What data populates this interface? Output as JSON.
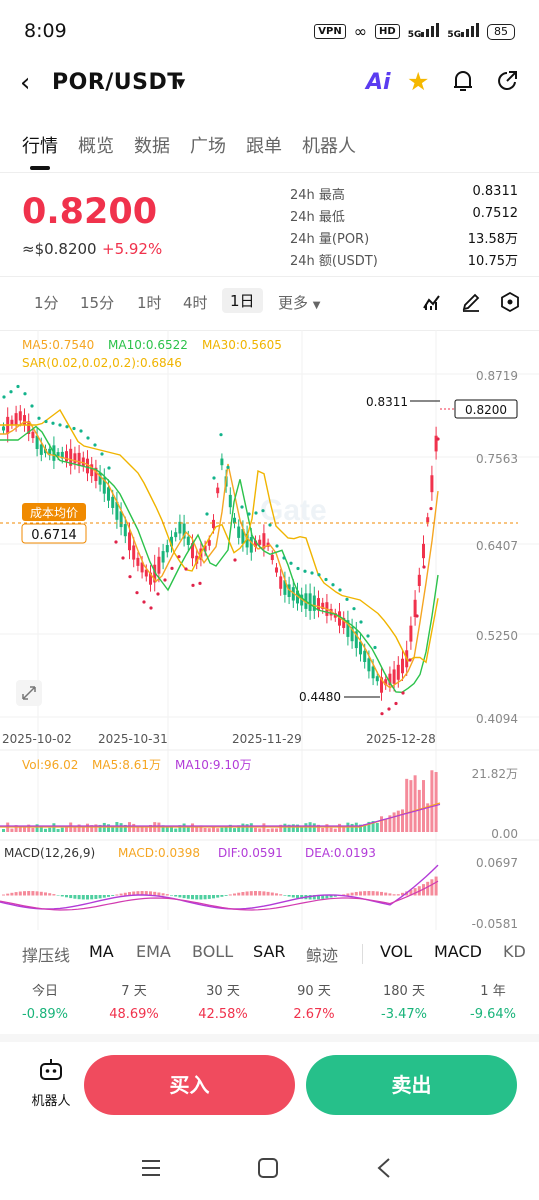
{
  "status": {
    "time": "8:09",
    "vpn": "VPN",
    "hd": "HD",
    "net1": "5G",
    "net2": "5G",
    "battery": "85"
  },
  "header": {
    "pair": "POR/USDT",
    "back_icon": "chevron-left-icon",
    "ai_label": "Ai",
    "icons": [
      "ai-icon",
      "star-icon",
      "bell-icon",
      "share-icon"
    ]
  },
  "tabs": [
    "行情",
    "概览",
    "数据",
    "广场",
    "跟单",
    "机器人"
  ],
  "ticker": {
    "price": "0.8200",
    "usd": "≈$0.8200",
    "change": "+5.92%",
    "stats": [
      {
        "label": "24h  最高",
        "value": "0.8311"
      },
      {
        "label": "24h  最低",
        "value": "0.7512"
      },
      {
        "label": "24h  量(POR)",
        "value": "13.58万"
      },
      {
        "label": "24h  额(USDT)",
        "value": "10.75万"
      }
    ]
  },
  "timeframes": [
    "1分",
    "15分",
    "1时",
    "4时",
    "1日",
    "更多"
  ],
  "chart_data": {
    "type": "candlestick",
    "main_indicators": {
      "ma5": "MA5:0.7540",
      "ma10": "MA10:0.6522",
      "ma30": "MA30:0.5605",
      "sar": "SAR(0.02,0.02,0.2):0.6846"
    },
    "y_ticks": [
      "0.8719",
      "0.7563",
      "0.6407",
      "0.5250",
      "0.4094"
    ],
    "x_ticks": [
      "2025-10-02",
      "2025-10-31",
      "2025-11-29",
      "2025-12-28"
    ],
    "high_label": "0.8311",
    "low_label": "0.4480",
    "last_price": "0.8200",
    "avg_cost_label": "成本均价",
    "avg_cost": "0.6714",
    "watermark": "Gate",
    "volume": {
      "vol": "Vol:96.02",
      "ma5": "MA5:8.61万",
      "ma10": "MA10:9.10万",
      "ticks": [
        "21.82万",
        "0.00"
      ]
    },
    "macd": {
      "params": "MACD(12,26,9)",
      "macd": "MACD:0.0398",
      "dif": "DIF:0.0591",
      "dea": "DEA:0.0193",
      "ticks": [
        "0.0697",
        "-0.0581"
      ]
    }
  },
  "indicator_tabs": [
    "撑压线",
    "MA",
    "EMA",
    "BOLL",
    "SAR",
    "鲸迹",
    "VOL",
    "MACD",
    "KD"
  ],
  "performance": [
    {
      "label": "今日",
      "value": "-0.89%"
    },
    {
      "label": "7 天",
      "value": "48.69%"
    },
    {
      "label": "30 天",
      "value": "42.58%"
    },
    {
      "label": "90 天",
      "value": "2.67%"
    },
    {
      "label": "180 天",
      "value": "-3.47%"
    },
    {
      "label": "1 年",
      "value": "-9.64%"
    }
  ],
  "actions": {
    "bot": "机器人",
    "buy": "买入",
    "sell": "卖出"
  },
  "colors": {
    "up": "#f0324c",
    "down": "#19b47a",
    "ma5": "#f5a623",
    "ma10": "#2cc24b",
    "ma30": "#f0b400",
    "sar_up": "#e0234a",
    "sar_down": "#13b38b",
    "avg": "#f08a00"
  }
}
